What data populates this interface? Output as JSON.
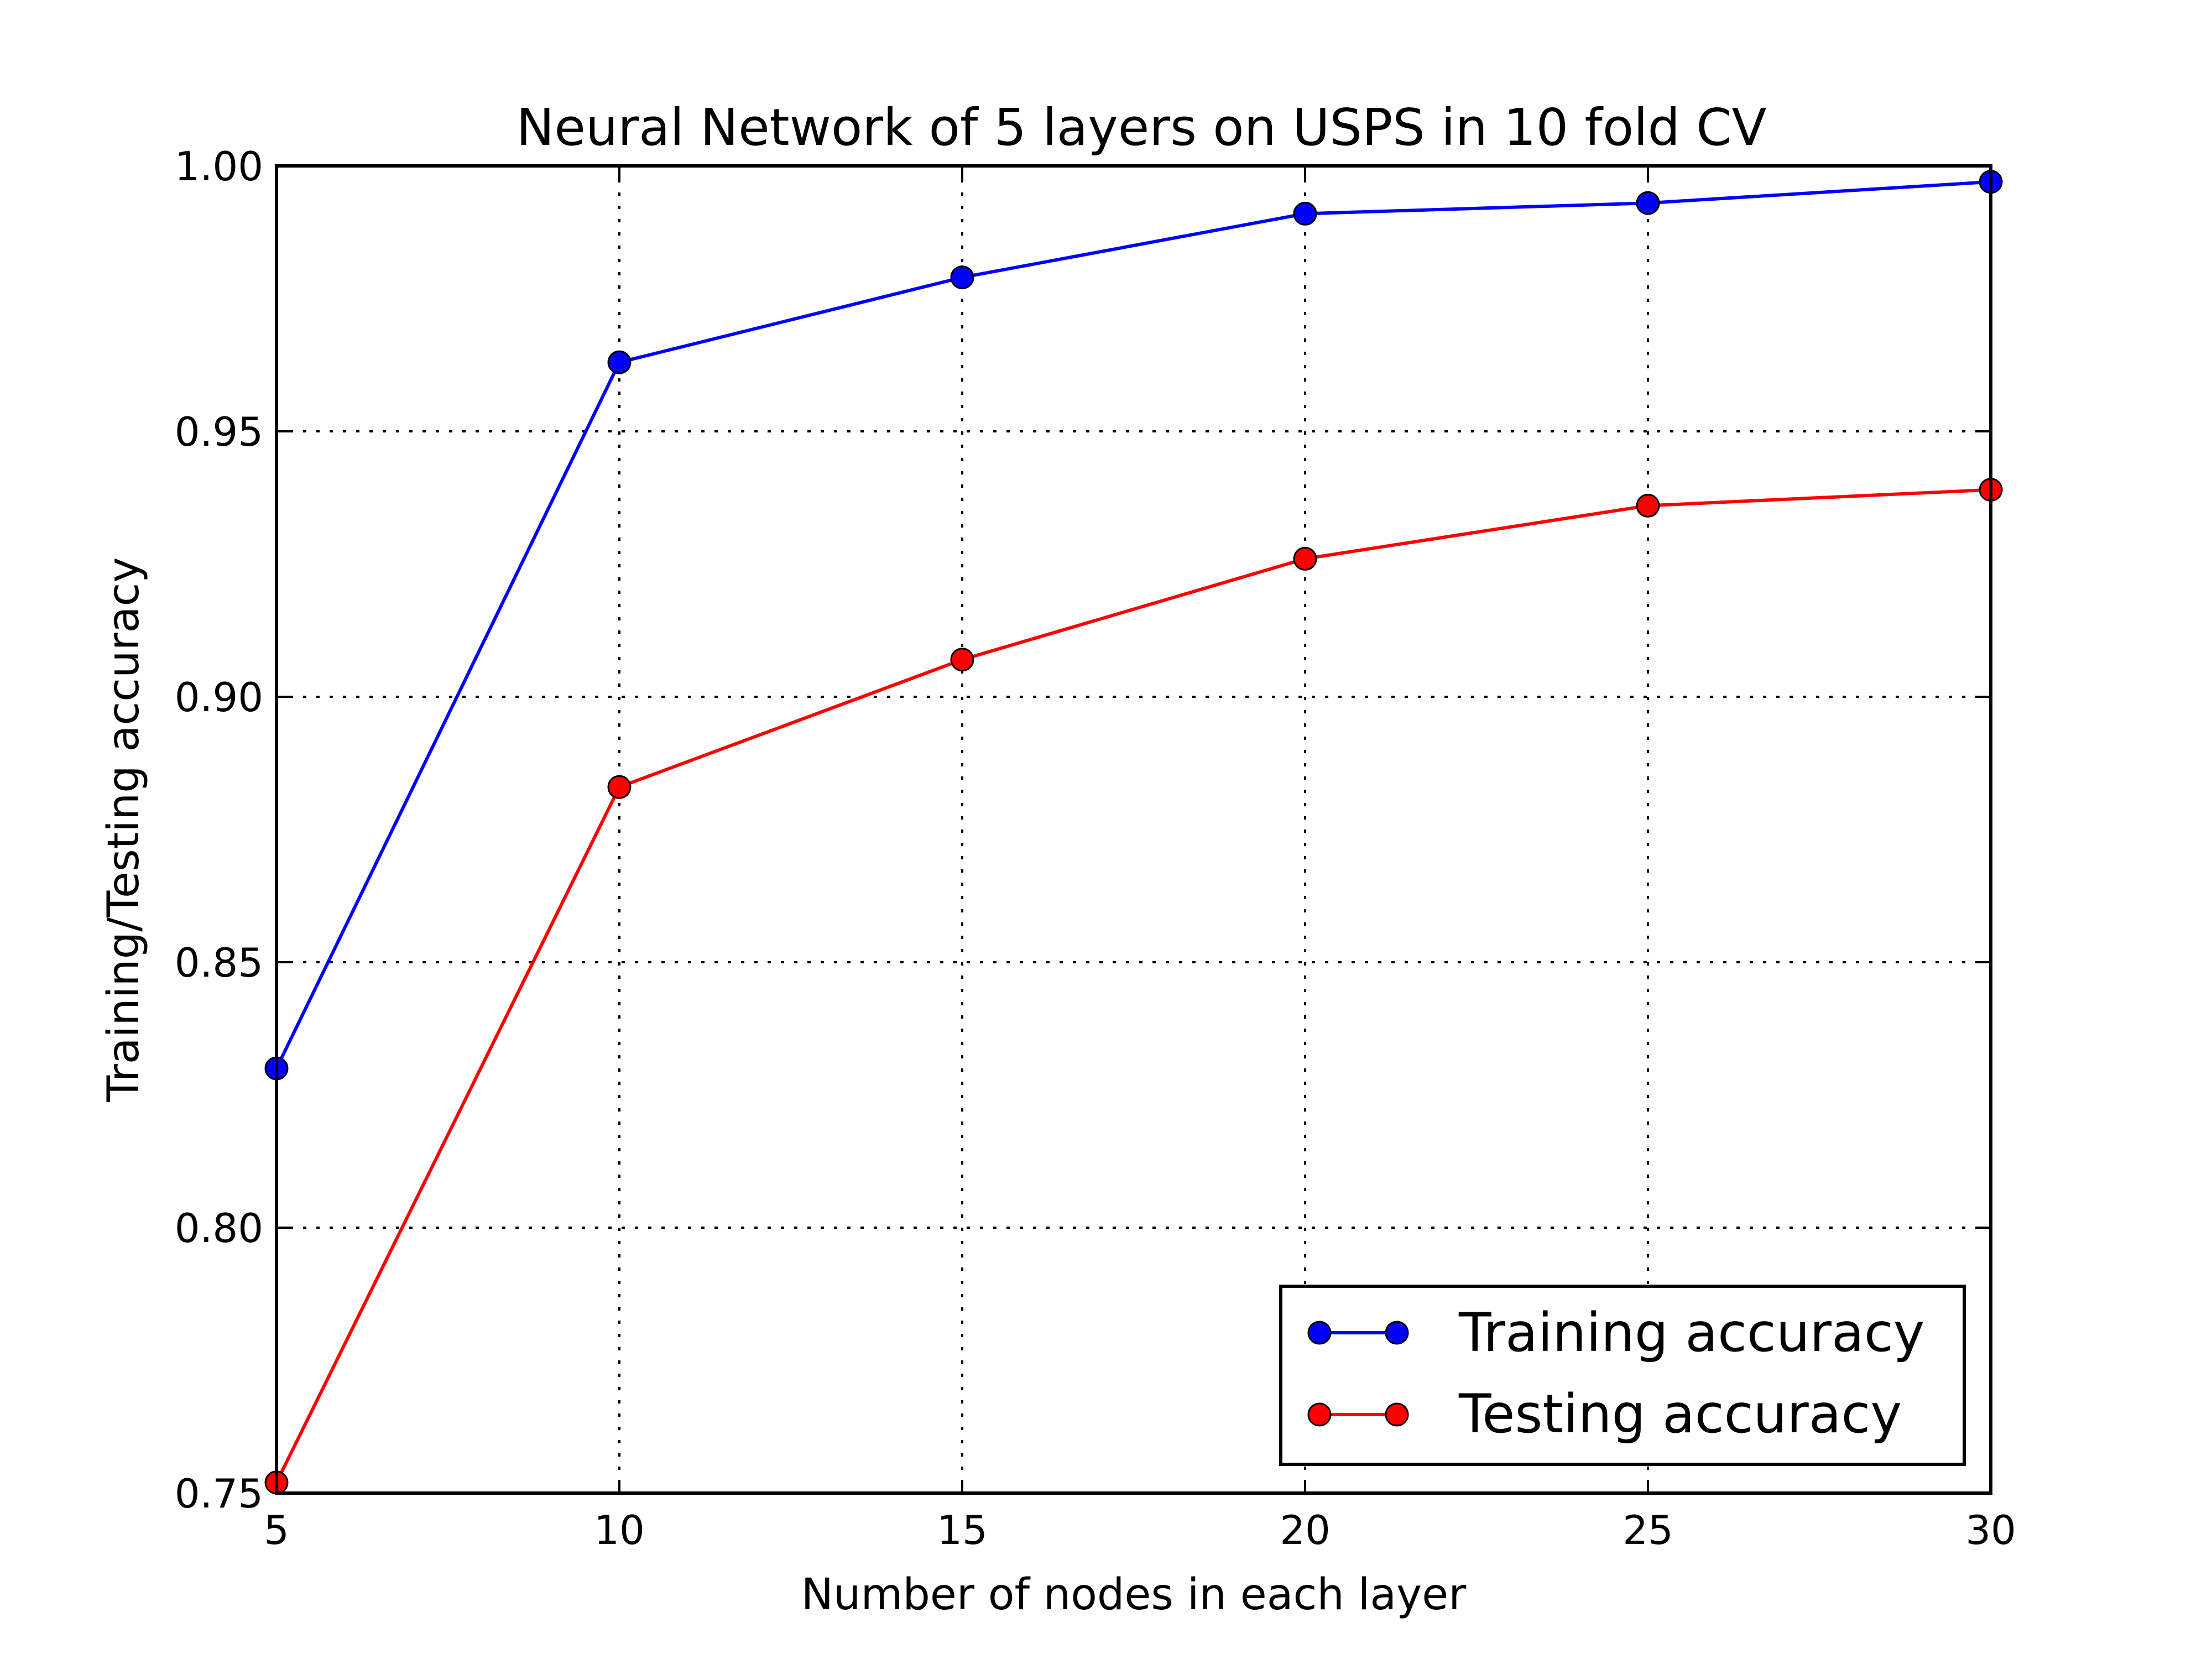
{
  "chart_data": {
    "type": "line",
    "title": "Neural Network of 5 layers on USPS in 10 fold CV",
    "xlabel": "Number of nodes in each layer",
    "ylabel": "Training/Testing accuracy",
    "x": [
      5,
      10,
      15,
      20,
      25,
      30
    ],
    "xlim": [
      5,
      30
    ],
    "ylim": [
      0.75,
      1.0
    ],
    "x_ticks": [
      "5",
      "10",
      "15",
      "20",
      "25",
      "30"
    ],
    "y_ticks": [
      "0.75",
      "0.80",
      "0.85",
      "0.90",
      "0.95",
      "1.00"
    ],
    "grid": true,
    "legend_position": "lower-right",
    "series": [
      {
        "name": "Training accuracy",
        "color": "#0000ff",
        "values": [
          0.83,
          0.963,
          0.979,
          0.991,
          0.993,
          0.997
        ]
      },
      {
        "name": "Testing accuracy",
        "color": "#ff0000",
        "values": [
          0.752,
          0.883,
          0.907,
          0.926,
          0.936,
          0.939
        ]
      }
    ]
  }
}
